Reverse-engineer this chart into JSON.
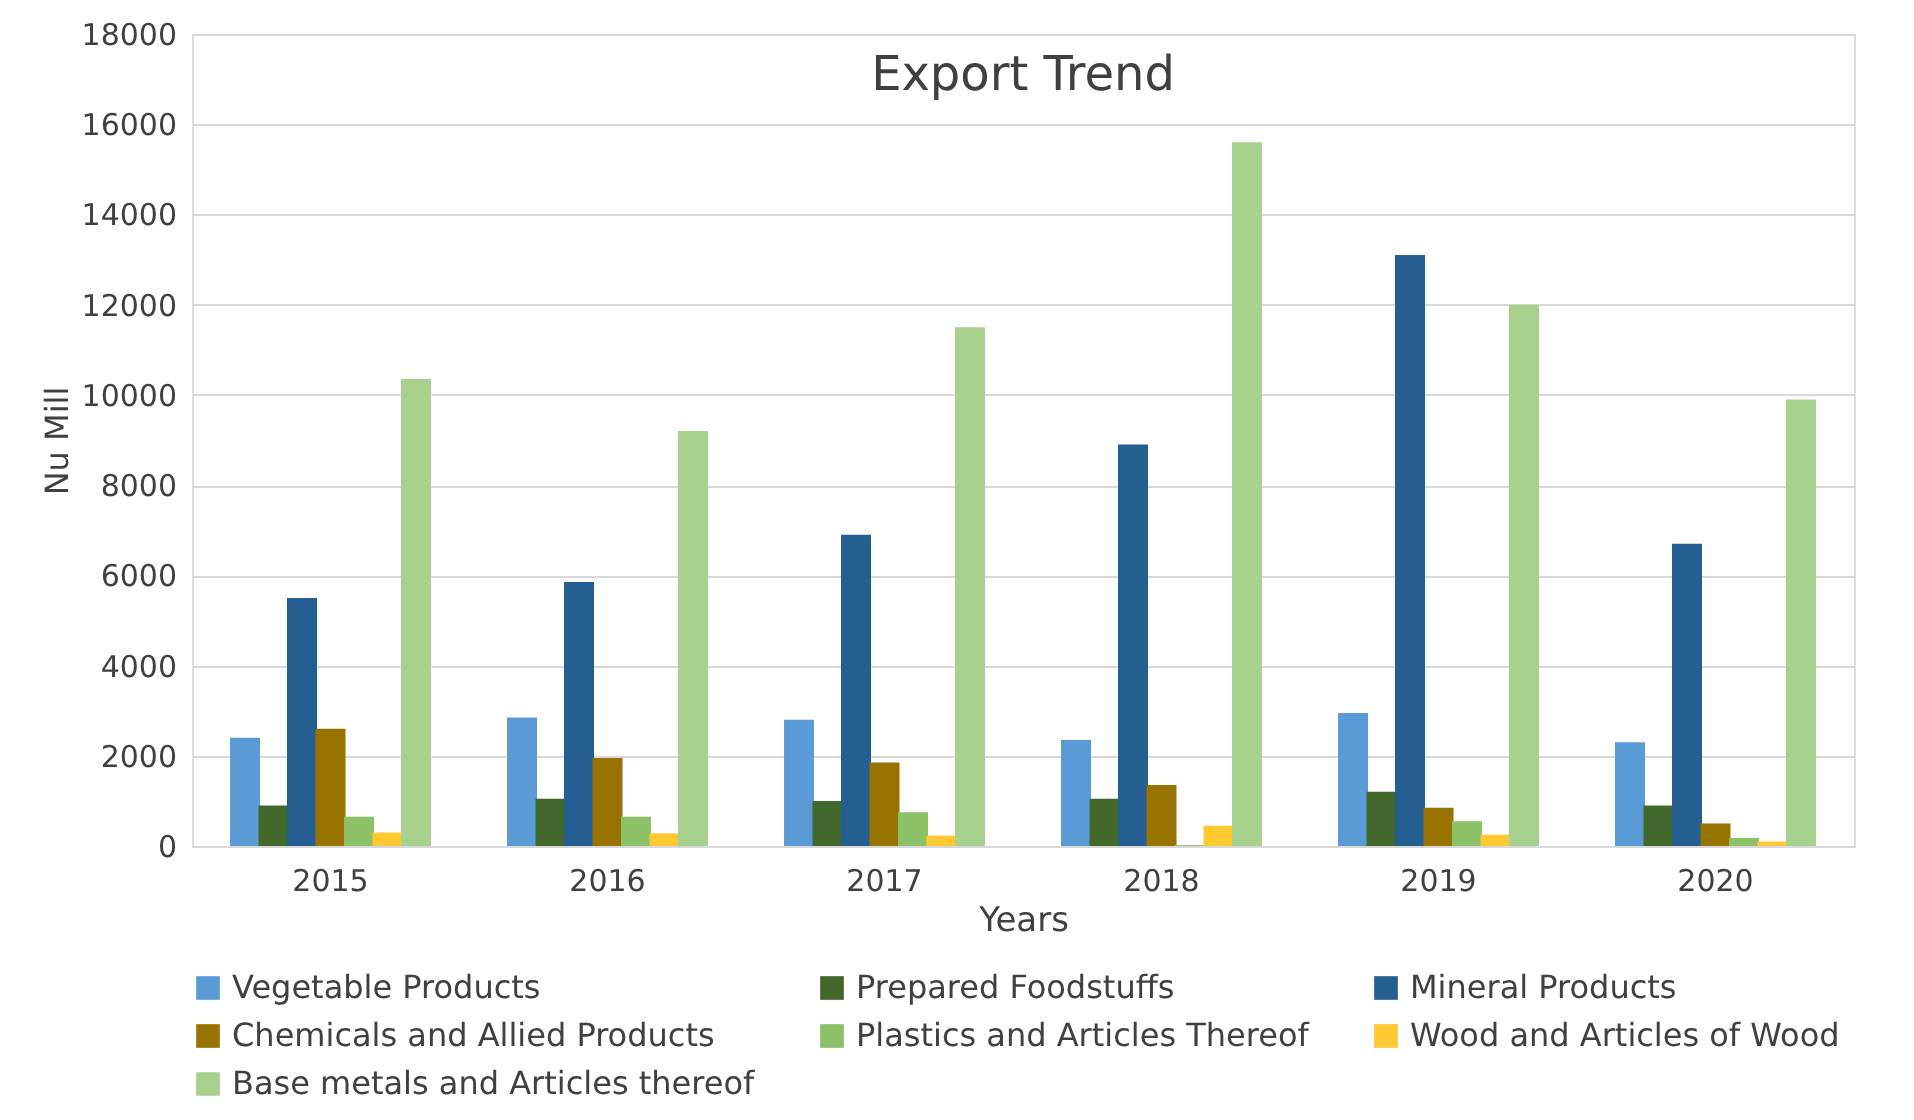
{
  "chart_data": {
    "type": "bar",
    "title": "Export  Trend",
    "xlabel": "Years",
    "ylabel": "Nu Mill",
    "categories": [
      "2015",
      "2016",
      "2017",
      "2018",
      "2019",
      "2020"
    ],
    "series": [
      {
        "name": "Vegetable Products",
        "color": "#5b9bd5",
        "values": [
          2400,
          2850,
          2800,
          2350,
          2950,
          2300
        ]
      },
      {
        "name": "Prepared Foodstuffs",
        "color": "#43682b",
        "values": [
          900,
          1050,
          1000,
          1050,
          1200,
          900
        ]
      },
      {
        "name": "Mineral Products",
        "color": "#255e91",
        "values": [
          5500,
          5850,
          6900,
          8900,
          13100,
          6700
        ]
      },
      {
        "name": "Chemicals and Allied Products",
        "color": "#997300",
        "values": [
          2600,
          1950,
          1850,
          1350,
          850,
          500
        ]
      },
      {
        "name": "Plastics and Articles Thereof",
        "color": "#8cc168",
        "values": [
          650,
          650,
          750,
          20,
          550,
          180
        ]
      },
      {
        "name": "Wood and Articles of Wood",
        "color": "#ffc931",
        "values": [
          300,
          280,
          230,
          450,
          250,
          100
        ]
      },
      {
        "name": "Base metals and Articles thereof",
        "color": "#a9d18e",
        "values": [
          10350,
          9200,
          11500,
          15600,
          12000,
          9900
        ]
      }
    ],
    "ylim": [
      0,
      18000
    ],
    "yticks": [
      0,
      2000,
      4000,
      6000,
      8000,
      10000,
      12000,
      14000,
      16000,
      18000
    ],
    "grid": "y",
    "legend": "bottom"
  }
}
